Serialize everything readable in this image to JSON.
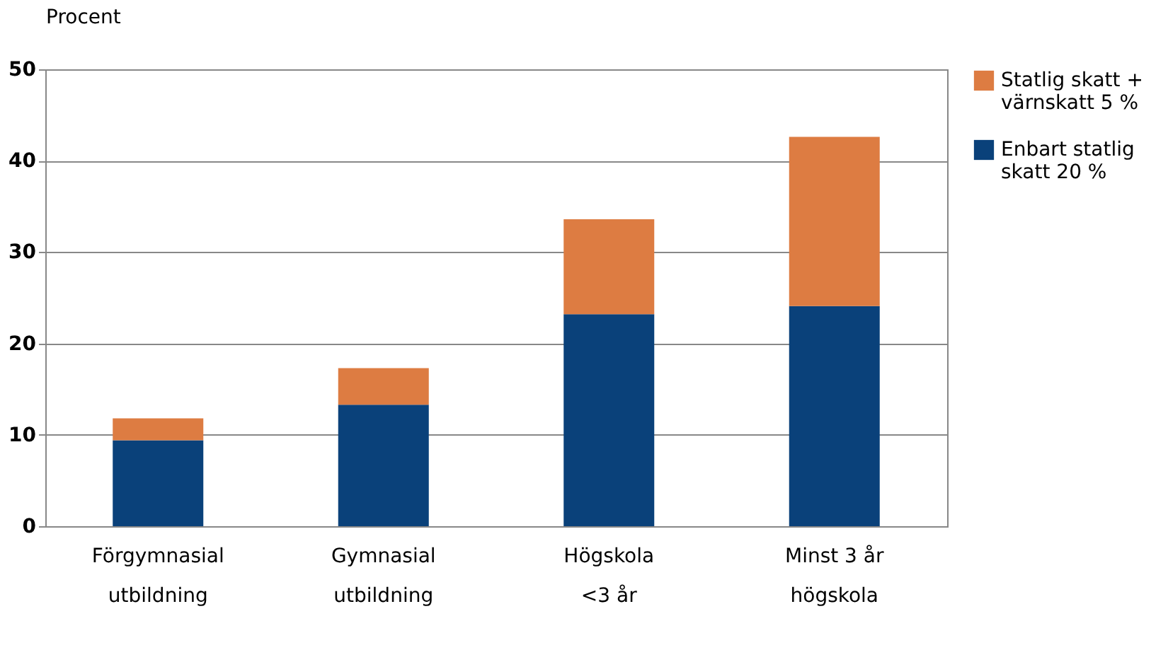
{
  "chart_data": {
    "type": "bar",
    "stacked": true,
    "ylabel": "Procent",
    "categories": [
      "Förgymnasial\nutbildning",
      "Gymnasial\nutbildning",
      "Högskola\n<3 år",
      "Minst 3 år\nhögskola"
    ],
    "series": [
      {
        "name": "Enbart statlig\nskatt 20 %",
        "color": "#0a417a",
        "values": [
          9.4,
          13.3,
          23.2,
          24.1
        ]
      },
      {
        "name": "Statlig skatt +\nvärnskatt 5 %",
        "color": "#dd7c42",
        "values": [
          2.4,
          4.0,
          10.4,
          18.5
        ]
      }
    ],
    "ylim": [
      0,
      50
    ],
    "yticks": [
      0,
      10,
      20,
      30,
      40,
      50
    ],
    "grid": "y",
    "legend": "right"
  }
}
